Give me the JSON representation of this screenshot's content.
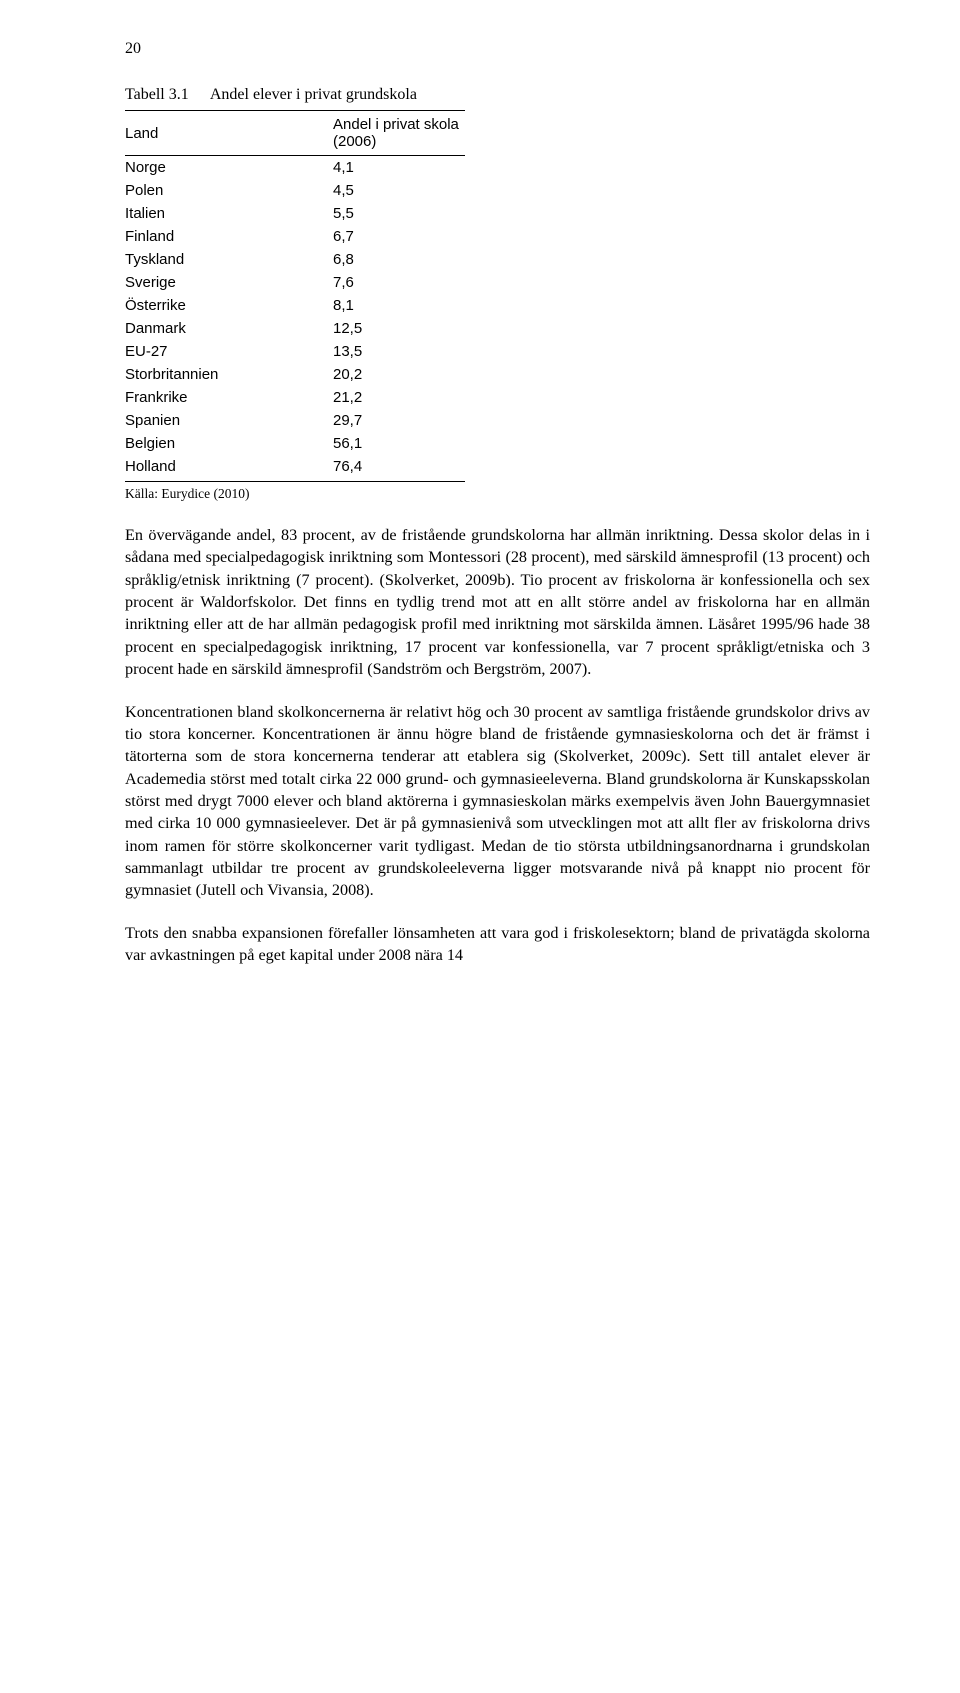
{
  "page_number": "20",
  "table": {
    "number": "Tabell 3.1",
    "title": "Andel elever i privat grundskola",
    "columns": [
      "Land",
      "Andel i privat skola (2006)"
    ],
    "rows": [
      [
        "Norge",
        "4,1"
      ],
      [
        "Polen",
        "4,5"
      ],
      [
        "Italien",
        "5,5"
      ],
      [
        "Finland",
        "6,7"
      ],
      [
        "Tyskland",
        "6,8"
      ],
      [
        "Sverige",
        "7,6"
      ],
      [
        "Österrike",
        "8,1"
      ],
      [
        "Danmark",
        "12,5"
      ],
      [
        "EU-27",
        "13,5"
      ],
      [
        "Storbritannien",
        "20,2"
      ],
      [
        "Frankrike",
        "21,2"
      ],
      [
        "Spanien",
        "29,7"
      ],
      [
        "Belgien",
        "56,1"
      ],
      [
        "Holland",
        "76,4"
      ]
    ],
    "source": "Källa: Eurydice (2010)"
  },
  "paragraphs": {
    "p1": "En övervägande andel, 83 procent, av de fristående grundskolorna har allmän inriktning. Dessa skolor delas in i sådana med specialpedagogisk inriktning som Montessori (28 procent), med särskild ämnesprofil (13 procent) och språklig/etnisk inriktning (7 procent). (Skolverket, 2009b). Tio procent av friskolorna är konfessionella och sex procent är Waldorfskolor. Det finns en tydlig trend mot att en allt större andel av friskolorna har en allmän inriktning eller att de har allmän pedagogisk profil med inriktning mot särskilda ämnen. Läsåret 1995/96 hade 38 procent en specialpedagogisk inriktning, 17 procent var konfessionella, var 7 procent språkligt/etniska och 3 procent hade en särskild ämnesprofil (Sandström och Bergström, 2007).",
    "p2": "Koncentrationen bland skolkoncernerna är relativt hög och 30 procent av samtliga fristående grundskolor drivs av tio stora koncerner. Koncentrationen är ännu högre bland de fristående gymnasieskolorna och det är främst i tätorterna som de stora koncernerna tenderar att etablera sig (Skolverket, 2009c). Sett till antalet elever är Academedia störst med totalt cirka 22 000 grund- och gymnasieeleverna. Bland grundskolorna är Kunskapsskolan störst med drygt 7000 elever och bland aktörerna i gymnasieskolan märks exempelvis även John Bauergymnasiet med cirka 10 000 gymnasieelever. Det är på gymnasienivå som utvecklingen mot att allt fler av friskolorna drivs inom ramen för större skolkoncerner varit tydligast. Medan de tio största utbildningsanordnarna i grundskolan sammanlagt utbildar tre procent av grundskoleeleverna ligger motsvarande nivå på knappt nio procent för gymnasiet (Jutell och Vivansia, 2008).",
    "p3": "Trots den snabba expansionen förefaller lönsamheten att vara god i friskolesektorn; bland de privatägda skolorna var avkastningen på eget kapital under 2008 nära 14"
  }
}
